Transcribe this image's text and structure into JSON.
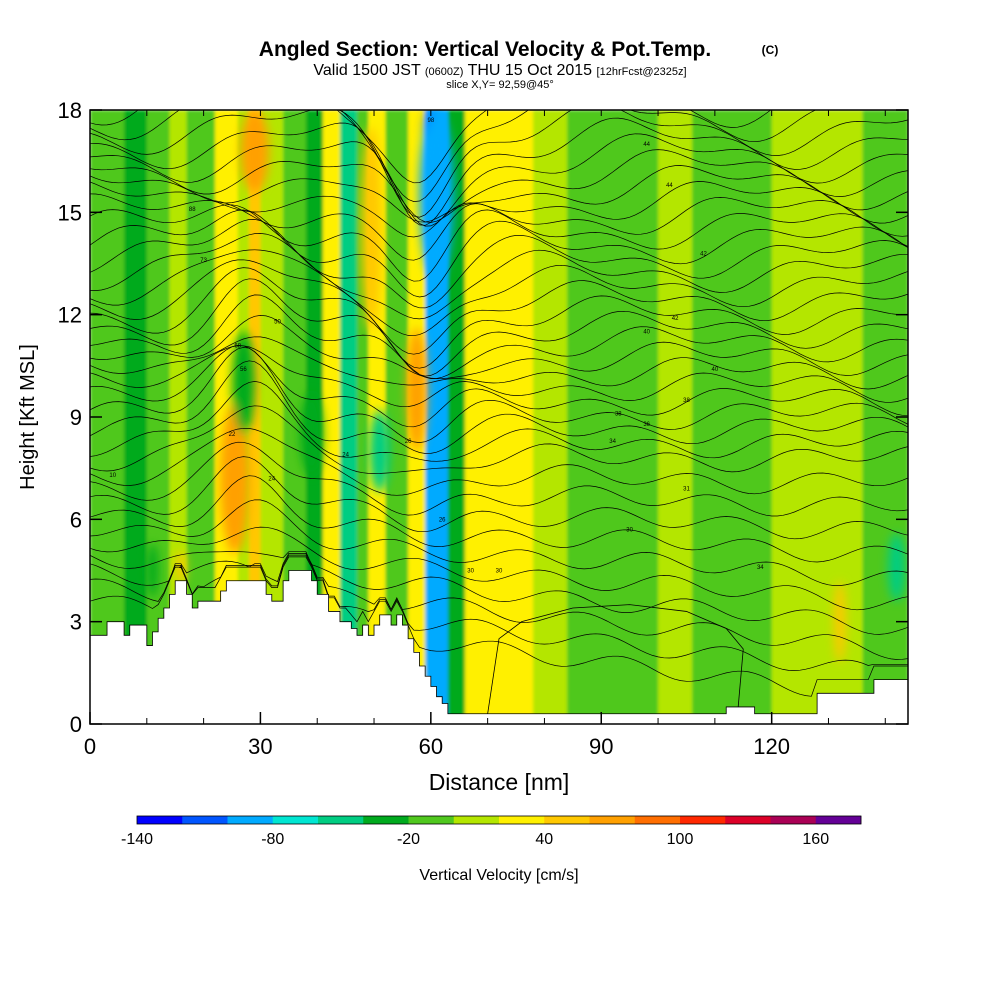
{
  "chart_data": {
    "type": "heatmap",
    "title": "Angled Section: Vertical Velocity & Pot.Temp.",
    "title_unit": "(C)",
    "subtitle_main_a": "Valid 1500 JST",
    "subtitle_small_a": "(0600Z)",
    "subtitle_main_b": "THU 15 Oct 2015",
    "subtitle_small_b": "[12hrFcst@2325z]",
    "subtitle2": "slice X,Y= 92,59@45°",
    "xlabel": "Distance [nm]",
    "ylabel": "Height [Kft MSL]",
    "xlim": [
      0,
      144
    ],
    "ylim": [
      0,
      18
    ],
    "x_ticks": [
      0,
      30,
      60,
      90,
      120
    ],
    "x_ticks_text": [
      "0",
      "30",
      "60",
      "90",
      "120"
    ],
    "x_minor_step": 10,
    "y_ticks": [
      0,
      3,
      6,
      9,
      12,
      15,
      18
    ],
    "y_ticks_text": [
      "0",
      "3",
      "6",
      "9",
      "12",
      "15",
      "18"
    ],
    "colorbar": {
      "label": "Vertical Velocity [cm/s]",
      "range": [
        -140,
        180
      ],
      "colors": [
        "#0000ff",
        "#0055ff",
        "#00aaff",
        "#00e6d2",
        "#00cd82",
        "#00aa1e",
        "#50c81e",
        "#b4e600",
        "#fff000",
        "#ffc800",
        "#ffa000",
        "#ff6e00",
        "#ff2800",
        "#dc0028",
        "#aa0055",
        "#640096"
      ],
      "ticks": [
        -140,
        -80,
        -20,
        40,
        100,
        160
      ],
      "tick_labels": [
        "-140",
        "-80",
        "-20",
        "40",
        "100",
        "160"
      ]
    },
    "velocity_bands": [
      {
        "x": [
          0,
          6
        ],
        "v": -10
      },
      {
        "x": [
          6,
          10
        ],
        "v": -30
      },
      {
        "x": [
          10,
          14
        ],
        "v": -10
      },
      {
        "x": [
          14,
          17
        ],
        "v": 5
      },
      {
        "x": [
          17,
          22
        ],
        "v": -5
      },
      {
        "x": [
          22,
          26
        ],
        "v": 20
      },
      {
        "x": [
          26,
          28
        ],
        "v": 10
      },
      {
        "x": [
          28,
          30
        ],
        "v": 45
      },
      {
        "x": [
          30,
          34
        ],
        "v": 15
      },
      {
        "x": [
          34,
          38
        ],
        "v": -5
      },
      {
        "x": [
          38,
          41
        ],
        "v": -25
      },
      {
        "x": [
          41,
          44
        ],
        "v": 25
      },
      {
        "x": [
          44,
          47
        ],
        "v": -50
      },
      {
        "x": [
          47,
          49
        ],
        "v": -20
      },
      {
        "x": [
          49,
          52
        ],
        "v": 30
      },
      {
        "x": [
          52,
          56
        ],
        "v": -15
      },
      {
        "x": [
          56,
          59
        ],
        "v": 20
      },
      {
        "x": [
          59,
          63
        ],
        "v": -90
      },
      {
        "x": [
          63,
          66
        ],
        "v": -40
      },
      {
        "x": [
          66,
          70
        ],
        "v": 25
      },
      {
        "x": [
          70,
          78
        ],
        "v": 30
      },
      {
        "x": [
          78,
          84
        ],
        "v": 10
      },
      {
        "x": [
          84,
          100
        ],
        "v": -5
      },
      {
        "x": [
          100,
          106
        ],
        "v": 10
      },
      {
        "x": [
          106,
          120
        ],
        "v": -10
      },
      {
        "x": [
          120,
          136
        ],
        "v": 5
      },
      {
        "x": [
          136,
          144
        ],
        "v": -10
      }
    ],
    "velocity_features": [
      {
        "x": 25.5,
        "y": 6.6,
        "v": 95,
        "w": 1.4,
        "h": 1.2
      },
      {
        "x": 25.5,
        "y": 7.2,
        "v": 60,
        "w": 2.6,
        "h": 2.2
      },
      {
        "x": 29,
        "y": 16.8,
        "v": 60,
        "w": 2.5,
        "h": 1.2
      },
      {
        "x": 49.5,
        "y": 14.5,
        "v": 55,
        "w": 1.8,
        "h": 3.0
      },
      {
        "x": 60,
        "y": 17.2,
        "v": -135,
        "w": 1.2,
        "h": 0.8
      },
      {
        "x": 61,
        "y": 15.5,
        "v": -90,
        "w": 3.0,
        "h": 2.5
      },
      {
        "x": 57.5,
        "y": 9.8,
        "v": 60,
        "w": 1.8,
        "h": 1.8
      },
      {
        "x": 27,
        "y": 10.0,
        "v": -40,
        "w": 2.0,
        "h": 1.5
      },
      {
        "x": 39,
        "y": 8.5,
        "v": -40,
        "w": 2.0,
        "h": 1.2
      },
      {
        "x": 51,
        "y": 8.0,
        "v": -45,
        "w": 1.8,
        "h": 1.2
      },
      {
        "x": 142,
        "y": 4.6,
        "v": -45,
        "w": 1.5,
        "h": 1.0
      },
      {
        "x": 132,
        "y": 3.0,
        "v": 45,
        "w": 1.0,
        "h": 1.2
      },
      {
        "x": 11,
        "y": 4.5,
        "v": -35,
        "w": 1.0,
        "h": 0.8
      },
      {
        "x": 16,
        "y": 4.6,
        "v": 50,
        "w": 0.8,
        "h": 0.5
      }
    ],
    "theta_contour_labels": [
      "4",
      "10",
      "22",
      "24",
      "24",
      "26",
      "26",
      "30",
      "30",
      "30",
      "31",
      "34",
      "34",
      "36",
      "38",
      "38",
      "40",
      "40",
      "42",
      "42",
      "44",
      "44",
      "50",
      "56",
      "68",
      "73",
      "88",
      "98"
    ],
    "terrain_kft": [
      [
        0,
        2.6
      ],
      [
        3,
        2.6
      ],
      [
        3,
        3.0
      ],
      [
        6,
        3.0
      ],
      [
        6,
        2.6
      ],
      [
        7,
        2.6
      ],
      [
        7,
        2.9
      ],
      [
        10,
        2.9
      ],
      [
        10,
        2.3
      ],
      [
        11,
        2.3
      ],
      [
        11,
        2.7
      ],
      [
        12,
        2.7
      ],
      [
        12,
        3.1
      ],
      [
        13,
        3.1
      ],
      [
        13,
        3.4
      ],
      [
        14,
        3.4
      ],
      [
        14,
        3.8
      ],
      [
        15,
        3.8
      ],
      [
        15,
        4.2
      ],
      [
        17,
        4.2
      ],
      [
        17,
        3.8
      ],
      [
        18,
        3.8
      ],
      [
        18,
        3.4
      ],
      [
        19,
        3.4
      ],
      [
        19,
        3.6
      ],
      [
        23,
        3.6
      ],
      [
        23,
        3.9
      ],
      [
        24,
        3.9
      ],
      [
        24,
        4.2
      ],
      [
        31,
        4.2
      ],
      [
        31,
        3.8
      ],
      [
        32,
        3.8
      ],
      [
        32,
        3.6
      ],
      [
        34,
        3.6
      ],
      [
        34,
        4.2
      ],
      [
        35,
        4.2
      ],
      [
        35,
        4.5
      ],
      [
        39,
        4.5
      ],
      [
        39,
        4.2
      ],
      [
        40,
        4.2
      ],
      [
        40,
        3.8
      ],
      [
        42,
        3.8
      ],
      [
        42,
        3.3
      ],
      [
        44,
        3.3
      ],
      [
        44,
        3.0
      ],
      [
        46,
        3.0
      ],
      [
        46,
        2.8
      ],
      [
        47,
        2.8
      ],
      [
        47,
        2.6
      ],
      [
        48,
        2.6
      ],
      [
        48,
        2.9
      ],
      [
        49,
        2.9
      ],
      [
        49,
        2.6
      ],
      [
        50,
        2.6
      ],
      [
        50,
        2.9
      ],
      [
        51,
        2.9
      ],
      [
        51,
        3.2
      ],
      [
        53,
        3.2
      ],
      [
        53,
        2.9
      ],
      [
        54,
        2.9
      ],
      [
        54,
        3.2
      ],
      [
        55,
        3.2
      ],
      [
        55,
        2.9
      ],
      [
        56,
        2.9
      ],
      [
        56,
        2.5
      ],
      [
        57,
        2.5
      ],
      [
        57,
        2.1
      ],
      [
        58,
        2.1
      ],
      [
        58,
        1.7
      ],
      [
        59,
        1.7
      ],
      [
        59,
        1.4
      ],
      [
        60,
        1.4
      ],
      [
        60,
        1.1
      ],
      [
        61,
        1.1
      ],
      [
        61,
        0.8
      ],
      [
        62,
        0.8
      ],
      [
        62,
        0.6
      ],
      [
        63,
        0.6
      ],
      [
        63,
        0.3
      ],
      [
        112,
        0.3
      ],
      [
        112,
        0.5
      ],
      [
        117,
        0.5
      ],
      [
        117,
        0.3
      ],
      [
        128,
        0.3
      ],
      [
        128,
        0.9
      ],
      [
        138,
        0.9
      ],
      [
        138,
        1.3
      ],
      [
        144,
        1.3
      ]
    ]
  }
}
